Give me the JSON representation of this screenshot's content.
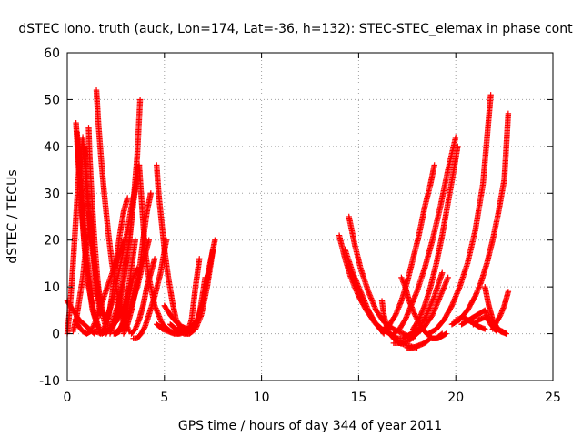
{
  "chart_data": {
    "type": "scatter",
    "title": "dSTEC Iono. truth (auck, Lon=174, Lat=-36, h=132): STEC-STEC_elemax in phase cont",
    "xlabel": "GPS time / hours of day 344 of year 2011",
    "ylabel": "dSTEC  / TECUs",
    "xlim": [
      0,
      25
    ],
    "ylim": [
      -10,
      60
    ],
    "xticks": [
      0,
      5,
      10,
      15,
      20,
      25
    ],
    "yticks": [
      -10,
      0,
      10,
      20,
      30,
      40,
      50,
      60
    ],
    "grid": true,
    "marker": "+",
    "color": "#ff0000",
    "series": [
      {
        "arcs": [
          {
            "x": [
              0.0,
              0.3,
              0.6,
              1.0,
              1.4
            ],
            "y": [
              7,
              5,
              3,
              1.5,
              0
            ]
          },
          {
            "x": [
              0.0,
              0.15,
              0.3,
              0.45,
              0.6,
              0.8,
              1.0,
              1.3,
              1.6,
              2.0
            ],
            "y": [
              0,
              6,
              15,
              25,
              35,
              42,
              30,
              18,
              8,
              1
            ]
          },
          {
            "x": [
              0.45,
              0.55,
              0.7,
              0.9,
              1.1,
              1.4,
              1.7
            ],
            "y": [
              45,
              38,
              28,
              18,
              10,
              4,
              0.5
            ]
          },
          {
            "x": [
              0.5,
              0.6,
              0.75,
              0.9,
              1.1,
              1.3,
              1.6
            ],
            "y": [
              43,
              36,
              27,
              18,
              11,
              5,
              1
            ]
          },
          {
            "x": [
              0.3,
              0.5,
              0.8,
              1.0,
              1.2,
              1.5,
              1.8,
              2.1
            ],
            "y": [
              0.5,
              4,
              12,
              20,
              23,
              12,
              5,
              2
            ]
          },
          {
            "x": [
              0.4,
              0.6,
              0.8,
              1.0,
              1.2,
              1.5,
              1.9,
              2.4,
              2.9
            ],
            "y": [
              3,
              1.5,
              0.5,
              0,
              0.5,
              3,
              8,
              14,
              20
            ]
          },
          {
            "x": [
              0.6,
              0.7,
              0.85,
              1.0,
              1.15,
              1.3
            ],
            "y": [
              40,
              33,
              25,
              17,
              12,
              8
            ]
          },
          {
            "x": [
              0.9,
              1.0,
              1.1,
              1.3,
              1.5,
              1.7
            ],
            "y": [
              40,
              34,
              27,
              18,
              10,
              4
            ]
          },
          {
            "x": [
              1.1,
              1.15,
              1.25,
              1.4,
              1.55,
              1.7
            ],
            "y": [
              44,
              38,
              30,
              20,
              12,
              6
            ]
          }
        ]
      },
      {
        "arcs": [
          {
            "x": [
              1.4,
              1.8,
              2.2,
              2.6,
              2.9,
              3.2
            ],
            "y": [
              0.5,
              0,
              1,
              3,
              6,
              10
            ]
          },
          {
            "x": [
              1.5,
              1.6,
              1.75,
              1.9,
              2.1,
              2.3,
              2.6,
              2.9,
              3.2
            ],
            "y": [
              52,
              45,
              37,
              30,
              22,
              15,
              8,
              3,
              0.5
            ]
          },
          {
            "x": [
              1.7,
              1.9,
              2.1,
              2.4,
              2.7,
              3.0,
              3.3,
              3.6
            ],
            "y": [
              0,
              1,
              4,
              8,
              14,
              20,
              27,
              33
            ]
          },
          {
            "x": [
              2.0,
              2.3,
              2.6,
              2.9,
              3.2,
              3.4,
              3.7
            ],
            "y": [
              0,
              2,
              6,
              12,
              20,
              28,
              36
            ]
          },
          {
            "x": [
              2.2,
              2.4,
              2.6,
              2.8,
              3.0,
              3.2,
              3.4,
              3.6,
              3.75
            ],
            "y": [
              0,
              2,
              5,
              9,
              14,
              20,
              28,
              38,
              50
            ]
          },
          {
            "x": [
              2.1,
              2.3,
              2.5,
              2.7,
              2.9,
              3.1
            ],
            "y": [
              3,
              8,
              15,
              21,
              26,
              29
            ]
          },
          {
            "x": [
              2.5,
              2.7,
              2.9,
              3.1,
              3.3,
              3.5
            ],
            "y": [
              0,
              0.5,
              3,
              8,
              14,
              20
            ]
          },
          {
            "x": [
              2.4,
              2.7,
              3.0,
              3.3,
              3.6,
              3.9,
              4.2
            ],
            "y": [
              0,
              1,
              3,
              6,
              10,
              15,
              20
            ]
          },
          {
            "x": [
              2.9,
              3.1,
              3.3,
              3.5,
              3.7,
              3.9,
              4.1,
              4.3
            ],
            "y": [
              0,
              2,
              5,
              9,
              13,
              20,
              26,
              30
            ]
          },
          {
            "x": [
              2.8,
              3.0,
              3.2,
              3.4,
              3.6
            ],
            "y": [
              1,
              4,
              8,
              12,
              14
            ]
          }
        ]
      },
      {
        "arcs": [
          {
            "x": [
              3.7,
              3.8,
              3.9,
              4.0,
              4.2,
              4.5,
              4.9,
              5.3,
              5.7,
              6.1
            ],
            "y": [
              36,
              30,
              24,
              18,
              12,
              6,
              2,
              0.5,
              0,
              1
            ]
          },
          {
            "x": [
              3.3,
              3.5,
              3.7,
              3.9,
              4.1,
              4.3,
              4.5
            ],
            "y": [
              0,
              1,
              3,
              6,
              10,
              13,
              16
            ]
          },
          {
            "x": [
              3.4,
              3.6,
              3.8,
              4.0,
              4.2,
              4.5,
              4.8,
              5.1
            ],
            "y": [
              -1,
              -1,
              0,
              1.5,
              4,
              8,
              13,
              20
            ]
          },
          {
            "x": [
              4.6,
              4.7,
              4.85,
              5.0,
              5.2,
              5.4,
              5.6,
              5.9,
              6.2
            ],
            "y": [
              36,
              30,
              24,
              18,
              12,
              7,
              3,
              1,
              0
            ]
          },
          {
            "x": [
              4.6,
              4.9,
              5.2,
              5.5,
              5.8,
              6.1,
              6.4,
              6.7,
              7.0,
              7.3,
              7.6
            ],
            "y": [
              2,
              1,
              0.5,
              0,
              0,
              0.5,
              1.5,
              3,
              7,
              14,
              20
            ]
          },
          {
            "x": [
              5.0,
              5.3,
              5.6,
              5.9,
              6.2,
              6.5,
              6.8,
              7.1
            ],
            "y": [
              6,
              4,
              2.5,
              1.5,
              1,
              1,
              4,
              12
            ]
          },
          {
            "x": [
              5.3,
              5.6,
              5.9,
              6.2,
              6.4,
              6.6,
              6.8
            ],
            "y": [
              2,
              1,
              0.5,
              0.5,
              3,
              10,
              16
            ]
          },
          {
            "x": [
              5.7,
              6.0,
              6.3,
              6.6,
              6.9,
              7.2,
              7.5
            ],
            "y": [
              1,
              0,
              0,
              1,
              4,
              10,
              18
            ]
          }
        ]
      },
      {
        "arcs": [
          {
            "x": [
              14.0,
              14.3,
              14.6,
              15.0,
              15.4,
              15.8,
              16.2,
              16.6,
              17.0
            ],
            "y": [
              21,
              16,
              12,
              8,
              5,
              2.5,
              1,
              0,
              -1
            ]
          },
          {
            "x": [
              14.5,
              14.8,
              15.1,
              15.5,
              15.9,
              16.3,
              16.8,
              17.3,
              17.8
            ],
            "y": [
              25,
              19,
              14,
              9,
              5,
              2.5,
              1,
              0,
              -1
            ]
          },
          {
            "x": [
              14.3,
              14.7,
              15.1,
              15.5,
              15.9,
              16.3
            ],
            "y": [
              18,
              13,
              9,
              5,
              2,
              0
            ]
          }
        ]
      },
      {
        "arcs": [
          {
            "x": [
              16.2,
              16.3,
              16.45,
              16.6,
              16.8,
              17.1,
              17.5,
              18.0
            ],
            "y": [
              7,
              4,
              1.5,
              0,
              -1,
              -2,
              -2.5,
              -3
            ]
          },
          {
            "x": [
              16.3,
              16.6,
              16.9,
              17.2,
              17.5,
              17.8,
              18.1,
              18.4,
              18.7,
              18.9
            ],
            "y": [
              1,
              2,
              4,
              7,
              11,
              16,
              21,
              27,
              32,
              36
            ]
          },
          {
            "x": [
              16.8,
              17.1,
              17.4,
              17.7,
              18.0,
              18.4,
              18.8,
              19.2,
              19.6,
              20.0
            ],
            "y": [
              0,
              1,
              3,
              6,
              9,
              14,
              20,
              27,
              35,
              42
            ]
          },
          {
            "x": [
              17.2,
              17.4,
              17.6,
              17.9,
              18.2,
              18.5,
              18.8,
              19.1,
              19.5
            ],
            "y": [
              12,
              10,
              7,
              4,
              1.5,
              0,
              -1,
              -1,
              0
            ]
          },
          {
            "x": [
              17.8,
              18.1,
              18.4,
              18.7,
              19.0,
              19.3,
              19.6,
              19.9,
              20.1
            ],
            "y": [
              1,
              3,
              6,
              10,
              15,
              21,
              28,
              35,
              40
            ]
          },
          {
            "x": [
              16.8,
              17.2,
              17.6,
              18.0,
              18.4,
              18.8,
              19.2,
              19.6
            ],
            "y": [
              -2,
              -2,
              -1.5,
              0,
              1.5,
              4,
              8,
              12
            ]
          },
          {
            "x": [
              16.9,
              17.3,
              17.7,
              18.1,
              18.5,
              18.9,
              19.3
            ],
            "y": [
              -1,
              -1,
              0,
              1,
              4,
              8,
              13
            ]
          },
          {
            "x": [
              17.5,
              17.8,
              18.1,
              18.4,
              18.7,
              19.0,
              19.3
            ],
            "y": [
              -3,
              -3,
              -2.5,
              -2,
              -1,
              -1,
              0
            ]
          }
        ]
      },
      {
        "arcs": [
          {
            "x": [
              18.6,
              19.0,
              19.4,
              19.8,
              20.2,
              20.6,
              21.0,
              21.4,
              21.8
            ],
            "y": [
              0,
              1,
              3,
              6,
              10,
              15,
              22,
              32,
              51
            ]
          },
          {
            "x": [
              19.8,
              20.2,
              20.6,
              21.0,
              21.3,
              21.6,
              21.9,
              22.2,
              22.5,
              22.7
            ],
            "y": [
              2,
              3,
              5,
              8,
              11,
              15,
              20,
              26,
              33,
              47
            ]
          },
          {
            "x": [
              20.0,
              20.4,
              20.8,
              21.2,
              21.5
            ],
            "y": [
              3,
              3.5,
              2.5,
              1.5,
              1
            ]
          },
          {
            "x": [
              20.3,
              20.7,
              21.1,
              21.5,
              21.8,
              22.1
            ],
            "y": [
              2,
              3,
              4,
              5,
              2,
              0.5
            ]
          },
          {
            "x": [
              21.5,
              21.7,
              21.9,
              22.1,
              22.3,
              22.6
            ],
            "y": [
              10,
              6,
              3,
              1.5,
              0.5,
              0
            ]
          },
          {
            "x": [
              21.9,
              22.1,
              22.3,
              22.5,
              22.7
            ],
            "y": [
              1,
              2.5,
              4,
              6,
              9
            ]
          },
          {
            "x": [
              20.9,
              21.2,
              21.5,
              21.8,
              22.1,
              22.4,
              22.6
            ],
            "y": [
              2,
              3,
              3.5,
              2.5,
              1,
              0.5,
              0
            ]
          }
        ]
      }
    ]
  }
}
